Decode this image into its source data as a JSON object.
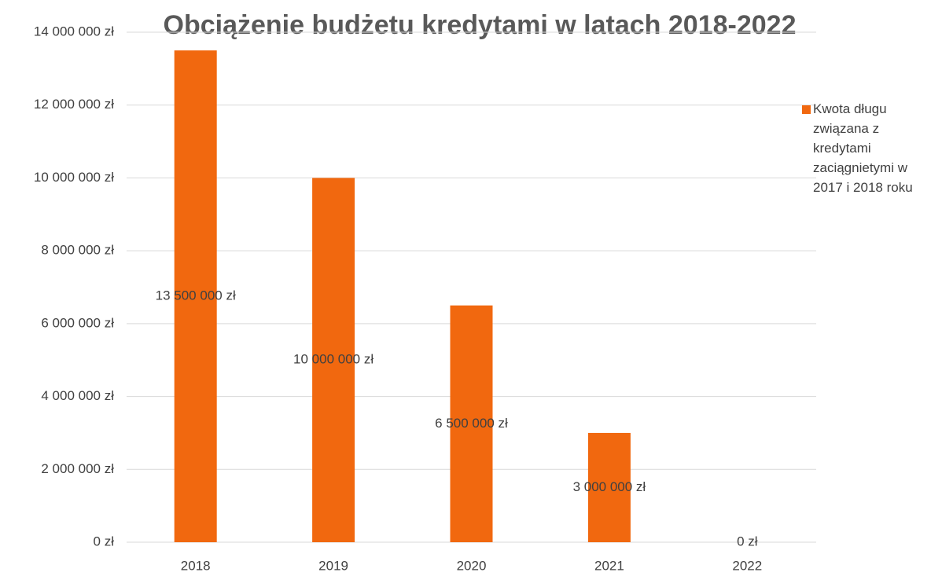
{
  "chart_data": {
    "type": "bar",
    "title": "Obciążenie budżetu kredytami w latach 2018-2022",
    "categories": [
      "2018",
      "2019",
      "2020",
      "2021",
      "2022"
    ],
    "series": [
      {
        "name": "Kwota długu związana z kredytami zaciągnietymi w 2017 i 2018 roku",
        "color": "#f1680f",
        "values": [
          13500000,
          10000000,
          6500000,
          3000000,
          0
        ],
        "value_labels": [
          "13 500 000 zł",
          "10 000 000 zł",
          "6 500 000 zł",
          "3 000 000 zł",
          "0 zł"
        ]
      }
    ],
    "ylim": [
      0,
      14000000
    ],
    "yticks": [
      {
        "value": 0,
        "label": "0 zł"
      },
      {
        "value": 2000000,
        "label": "2 000 000 zł"
      },
      {
        "value": 4000000,
        "label": "4 000 000 zł"
      },
      {
        "value": 6000000,
        "label": "6 000 000 zł"
      },
      {
        "value": 8000000,
        "label": "8 000 000 zł"
      },
      {
        "value": 10000000,
        "label": "10 000 000 zł"
      },
      {
        "value": 12000000,
        "label": "12 000 000 zł"
      },
      {
        "value": 14000000,
        "label": "14 000 000 zł"
      }
    ],
    "grid": true,
    "legend": "right"
  }
}
